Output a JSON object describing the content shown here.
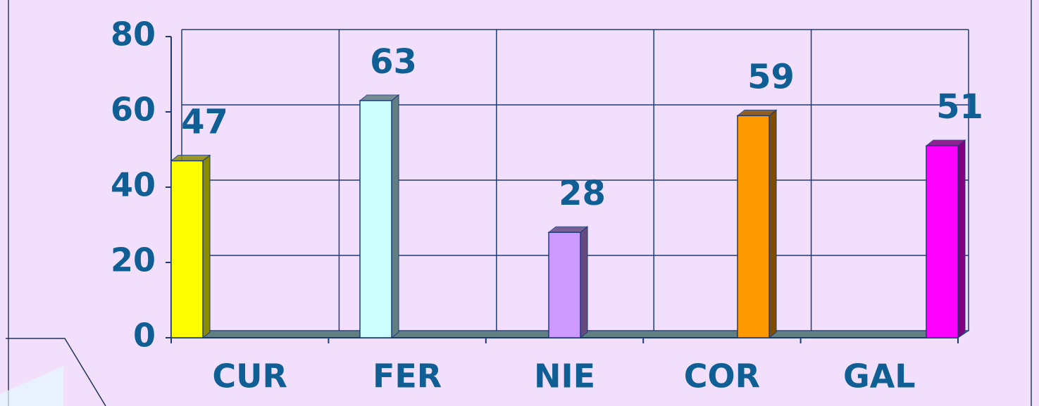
{
  "chart_data": {
    "type": "bar",
    "categories": [
      "CUR",
      "FER",
      "NIE",
      "COR",
      "GAL"
    ],
    "values": [
      47,
      63,
      28,
      59,
      51
    ],
    "colors": [
      "#ffff00",
      "#ccffff",
      "#cc99ff",
      "#ff9900",
      "#ff00ff"
    ],
    "side_colors": [
      "#8a8a00",
      "#5f7f80",
      "#654a80",
      "#7f4c00",
      "#800080"
    ],
    "ylim": [
      0,
      80
    ],
    "yticks": [
      0,
      20,
      40,
      60,
      80
    ],
    "grid": true,
    "data_labels": true
  }
}
